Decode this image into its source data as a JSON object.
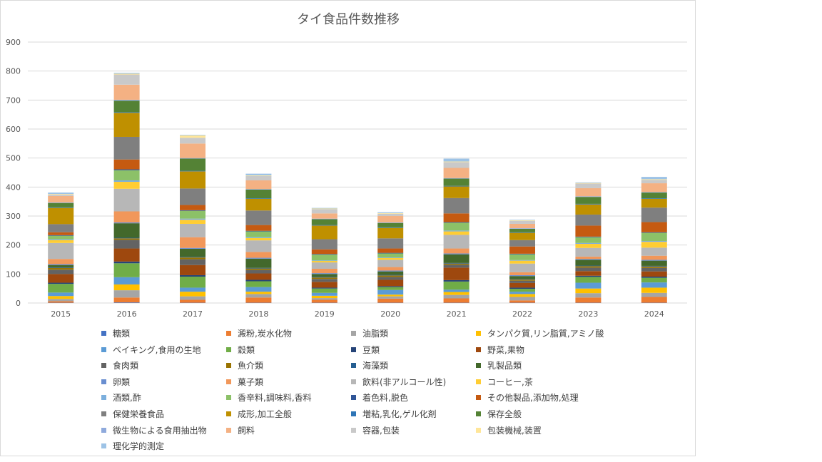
{
  "chart_data": {
    "type": "bar",
    "stacked": true,
    "title": "タイ食品件数推移",
    "xlabel": "",
    "ylabel": "",
    "ylim": [
      0,
      900
    ],
    "yticks": [
      0,
      100,
      200,
      300,
      400,
      500,
      600,
      700,
      800,
      900
    ],
    "grid": true,
    "legend_position": "bottom",
    "categories": [
      "2015",
      "2016",
      "2017",
      "2018",
      "2019",
      "2020",
      "2021",
      "2022",
      "2023",
      "2024"
    ],
    "series": [
      {
        "name": "糖類",
        "color": "#4472C4",
        "values": [
          1,
          2,
          1,
          1,
          1,
          1,
          1,
          1,
          1,
          1
        ]
      },
      {
        "name": "澱粉,炭水化物",
        "color": "#ED7D31",
        "values": [
          5,
          17,
          10,
          18,
          10,
          14,
          15,
          8,
          18,
          20
        ]
      },
      {
        "name": "油脂類",
        "color": "#A5A5A5",
        "values": [
          8,
          25,
          12,
          12,
          6,
          8,
          12,
          12,
          15,
          14
        ]
      },
      {
        "name": "タンパク質,リン脂質,アミノ酸",
        "color": "#FFC000",
        "values": [
          10,
          20,
          16,
          8,
          8,
          6,
          10,
          10,
          16,
          18
        ]
      },
      {
        "name": "ベイキング,食用の生地",
        "color": "#5B9BD5",
        "values": [
          12,
          25,
          14,
          16,
          10,
          16,
          8,
          8,
          20,
          18
        ]
      },
      {
        "name": "穀類",
        "color": "#70AD47",
        "values": [
          30,
          48,
          38,
          20,
          15,
          10,
          28,
          10,
          20,
          16
        ]
      },
      {
        "name": "豆類",
        "color": "#264478",
        "values": [
          4,
          6,
          5,
          5,
          3,
          3,
          5,
          4,
          4,
          4
        ]
      },
      {
        "name": "野菜,果物",
        "color": "#9E480E",
        "values": [
          30,
          45,
          35,
          22,
          20,
          22,
          43,
          16,
          16,
          18
        ]
      },
      {
        "name": "食肉類",
        "color": "#636363",
        "values": [
          15,
          30,
          20,
          12,
          10,
          10,
          10,
          8,
          12,
          12
        ]
      },
      {
        "name": "魚介類",
        "color": "#997300",
        "values": [
          6,
          5,
          6,
          5,
          5,
          5,
          4,
          4,
          5,
          5
        ]
      },
      {
        "name": "海藻類",
        "color": "#255E91",
        "values": [
          2,
          2,
          2,
          2,
          2,
          2,
          2,
          2,
          2,
          2
        ]
      },
      {
        "name": "乳製品類",
        "color": "#43682B",
        "values": [
          8,
          50,
          28,
          32,
          10,
          12,
          30,
          10,
          20,
          18
        ]
      },
      {
        "name": "卵類",
        "color": "#698ED0",
        "values": [
          3,
          3,
          3,
          3,
          3,
          3,
          3,
          3,
          3,
          3
        ]
      },
      {
        "name": "菓子類",
        "color": "#F1975A",
        "values": [
          18,
          38,
          37,
          20,
          15,
          12,
          17,
          10,
          8,
          14
        ]
      },
      {
        "name": "飲料(非アルコール性)",
        "color": "#B7B7B7",
        "values": [
          55,
          78,
          46,
          40,
          22,
          25,
          47,
          30,
          30,
          28
        ]
      },
      {
        "name": "コーヒー,茶",
        "color": "#FFCD33",
        "values": [
          10,
          24,
          14,
          8,
          5,
          6,
          12,
          10,
          14,
          20
        ]
      },
      {
        "name": "酒類,酢",
        "color": "#7CAFDD",
        "values": [
          3,
          5,
          4,
          3,
          2,
          2,
          3,
          2,
          3,
          3
        ]
      },
      {
        "name": "香辛料,調味料,香料",
        "color": "#8CC168",
        "values": [
          12,
          35,
          27,
          20,
          20,
          14,
          27,
          20,
          20,
          28
        ]
      },
      {
        "name": "着色料,脱色",
        "color": "#2F5597",
        "values": [
          2,
          3,
          2,
          2,
          2,
          2,
          2,
          2,
          2,
          2
        ]
      },
      {
        "name": "その他製品,添加物,処理",
        "color": "#C55A11",
        "values": [
          10,
          34,
          18,
          20,
          16,
          15,
          30,
          25,
          38,
          35
        ]
      },
      {
        "name": "保健栄養食品",
        "color": "#7F7F7F",
        "values": [
          28,
          78,
          57,
          50,
          35,
          35,
          53,
          22,
          38,
          50
        ]
      },
      {
        "name": "成形,加工全般",
        "color": "#BF9000",
        "values": [
          56,
          83,
          59,
          40,
          47,
          36,
          40,
          25,
          35,
          30
        ]
      },
      {
        "name": "増粘,乳化,ゲル化剤",
        "color": "#2E75B6",
        "values": [
          2,
          2,
          2,
          2,
          2,
          2,
          2,
          2,
          2,
          2
        ]
      },
      {
        "name": "保存全般",
        "color": "#548235",
        "values": [
          15,
          40,
          42,
          30,
          20,
          15,
          25,
          12,
          24,
          20
        ]
      },
      {
        "name": "微生物による食用抽出物",
        "color": "#8FAADC",
        "values": [
          2,
          3,
          2,
          2,
          2,
          2,
          2,
          2,
          2,
          2
        ]
      },
      {
        "name": "飼料",
        "color": "#F4B183",
        "values": [
          22,
          52,
          50,
          30,
          18,
          22,
          35,
          15,
          28,
          30
        ]
      },
      {
        "name": "容器,包装",
        "color": "#C9C9C9",
        "values": [
          5,
          35,
          20,
          15,
          15,
          8,
          20,
          10,
          16,
          12
        ]
      },
      {
        "name": "包装機械,装置",
        "color": "#FFE699",
        "values": [
          2,
          3,
          8,
          2,
          2,
          2,
          2,
          2,
          2,
          2
        ]
      },
      {
        "name": "理化学的測定",
        "color": "#9DC3E6",
        "values": [
          5,
          3,
          2,
          6,
          2,
          3,
          10,
          2,
          2,
          8
        ]
      }
    ]
  }
}
